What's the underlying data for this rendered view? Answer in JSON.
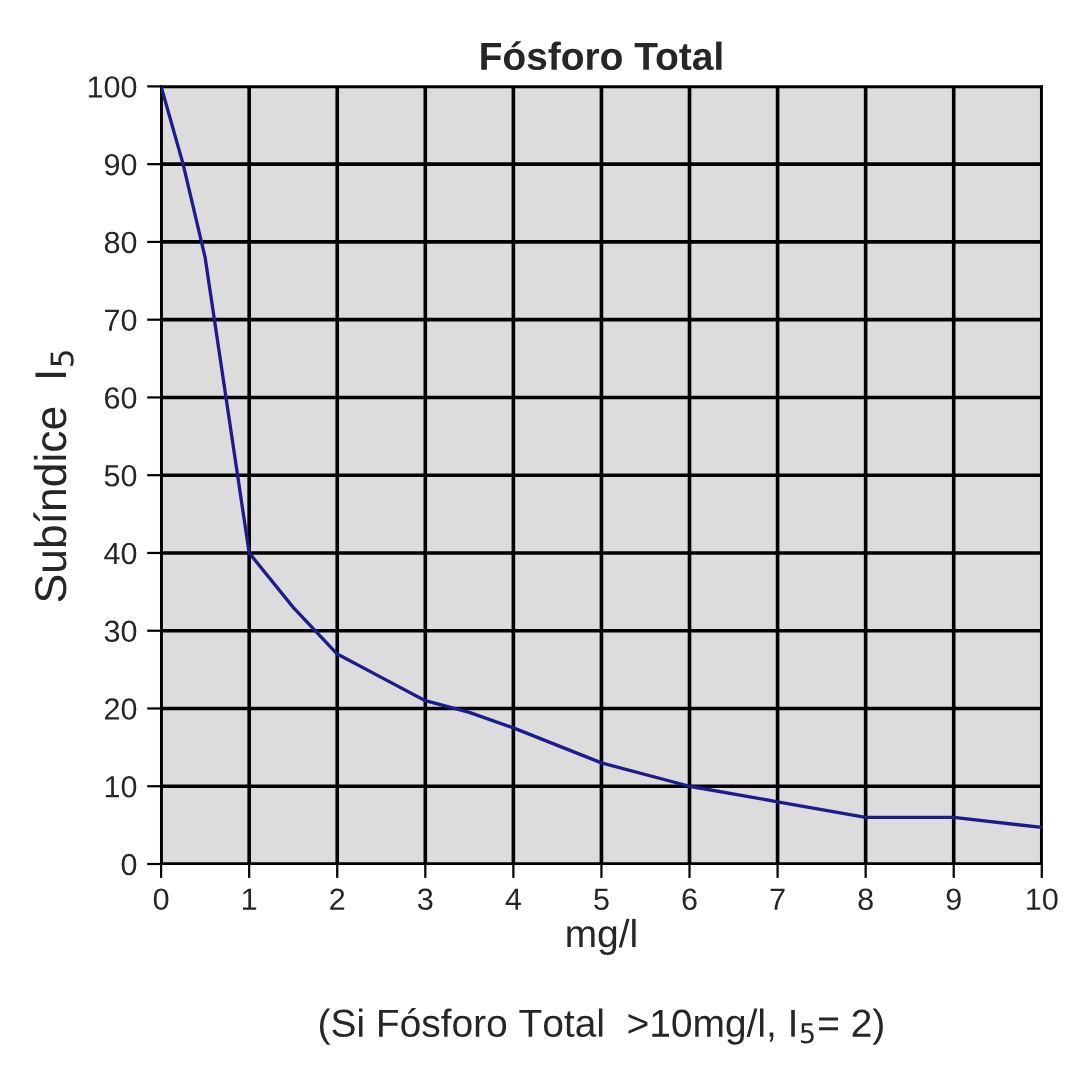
{
  "chart_data": {
    "type": "line",
    "title": "Fósforo Total",
    "xlabel": "mg/l",
    "ylabel": "Subíndice  I$_{5}$",
    "annotations": [
      "(Si Fósforo Total  >10mg/l, I$_{5}$= 2)"
    ],
    "series": [
      {
        "color": "#1c1c8c",
        "x": [
          0,
          0.25,
          0.5,
          1,
          1.5,
          2,
          2.5,
          3,
          3.5,
          4,
          5,
          6,
          7,
          8,
          9,
          10
        ],
        "values": [
          100,
          90,
          78,
          40,
          33,
          27,
          24,
          21,
          19.5,
          17.5,
          13,
          10,
          8,
          6,
          6,
          4.7
        ]
      }
    ],
    "xlim": [
      0,
      10
    ],
    "xticks": [
      0,
      1,
      2,
      3,
      4,
      5,
      6,
      7,
      8,
      9,
      10
    ],
    "ylim": [
      0,
      100
    ],
    "yticks": [
      0,
      10,
      20,
      30,
      40,
      50,
      60,
      70,
      80,
      90,
      100
    ],
    "grid": true,
    "legend": false,
    "marker": "none",
    "line_style": "solid"
  }
}
